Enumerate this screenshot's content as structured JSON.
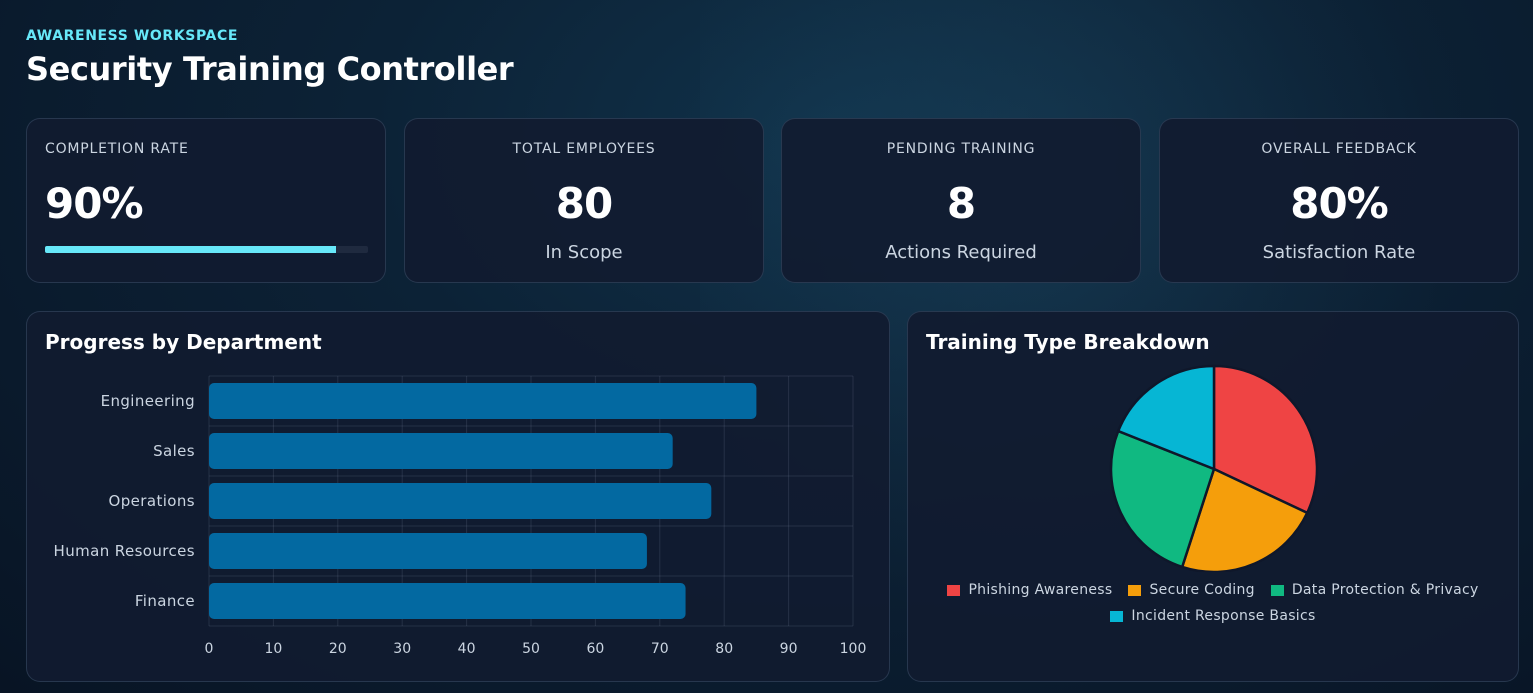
{
  "header": {
    "eyebrow": "AWARENESS WORKSPACE",
    "title": "Security Training Controller"
  },
  "kpis": {
    "completion": {
      "label": "COMPLETION RATE",
      "value": "90%",
      "progress": 0.9
    },
    "employees": {
      "label": "TOTAL EMPLOYEES",
      "value": "80",
      "sub": "In Scope"
    },
    "pending": {
      "label": "PENDING TRAINING",
      "value": "8",
      "sub": "Actions Required"
    },
    "feedback": {
      "label": "OVERALL FEEDBACK",
      "value": "80%",
      "sub": "Satisfaction Rate"
    }
  },
  "colors": {
    "accent": "#67e8f9",
    "bar": "#0369a1",
    "phishing": "#ef4444",
    "coding": "#f59e0b",
    "privacy": "#10b981",
    "incident": "#06b6d4"
  },
  "chart_data": [
    {
      "type": "bar",
      "orientation": "horizontal",
      "title": "Progress by Department",
      "categories": [
        "Engineering",
        "Sales",
        "Operations",
        "Human Resources",
        "Finance"
      ],
      "values": [
        85,
        72,
        78,
        68,
        74
      ],
      "xlim": [
        0,
        100
      ],
      "xticks": [
        0,
        10,
        20,
        30,
        40,
        50,
        60,
        70,
        80,
        90,
        100
      ],
      "grid": true
    },
    {
      "type": "pie",
      "title": "Training Type Breakdown",
      "labels": [
        "Phishing Awareness",
        "Secure Coding",
        "Data Protection & Privacy",
        "Incident Response Basics"
      ],
      "values": [
        32,
        23,
        26,
        19
      ],
      "colors": [
        "#ef4444",
        "#f59e0b",
        "#10b981",
        "#06b6d4"
      ],
      "legend_position": "bottom"
    }
  ]
}
